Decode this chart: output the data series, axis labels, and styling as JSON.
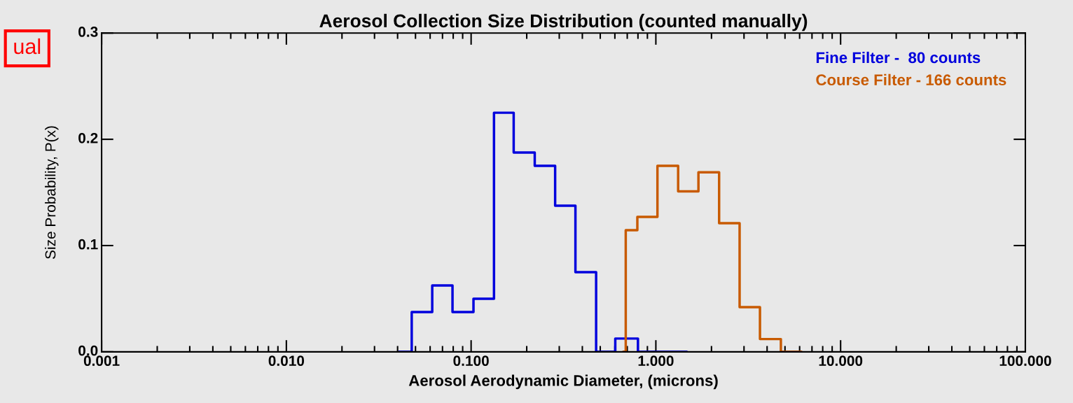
{
  "chart_data": {
    "type": "step",
    "title": "Aerosol Collection Size Distribution (counted manually)",
    "xlabel": "Aerosol Aerodynamic Diameter, (microns)",
    "ylabel": "Size Probability, P(x)",
    "log": "x",
    "xlim": [
      0.001,
      100
    ],
    "xticks": [
      {
        "value": 0.001,
        "label": "0.001"
      },
      {
        "value": 0.01,
        "label": "0.010"
      },
      {
        "value": 0.1,
        "label": "0.100"
      },
      {
        "value": 1,
        "label": "1.000"
      },
      {
        "value": 10,
        "label": "10.000"
      },
      {
        "value": 100,
        "label": "100.000"
      }
    ],
    "ylim": [
      0,
      0.3
    ],
    "yticks": [
      {
        "value": 0,
        "label": "0.0"
      },
      {
        "value": 0.1,
        "label": "0.1"
      },
      {
        "value": 0.2,
        "label": "0.2"
      },
      {
        "value": 0.3,
        "label": "0.3"
      }
    ],
    "grid": false,
    "legend": "top right",
    "marker": "none",
    "annotations": [
      "ual"
    ],
    "series": [
      {
        "name": "Fine Filter -  80 counts",
        "color": "#0000dd",
        "x": [
          0.041,
          0.0477,
          0.0616,
          0.0793,
          0.103,
          0.133,
          0.17,
          0.221,
          0.285,
          0.367,
          0.475,
          0.603,
          0.8,
          1.46
        ],
        "values": [
          0,
          0.0375,
          0.0625,
          0.0375,
          0.05,
          0.225,
          0.1875,
          0.175,
          0.1375,
          0.075,
          0,
          0.0125,
          0,
          0
        ]
      },
      {
        "name": "Course Filter - 166 counts",
        "color": "#c85a00",
        "x": [
          0.67,
          0.687,
          0.794,
          1.02,
          1.32,
          1.7,
          2.2,
          2.84,
          3.66,
          4.75,
          6.1
        ],
        "values": [
          0,
          0.1145,
          0.127,
          0.175,
          0.151,
          0.169,
          0.121,
          0.042,
          0.012,
          0,
          0
        ]
      }
    ]
  }
}
